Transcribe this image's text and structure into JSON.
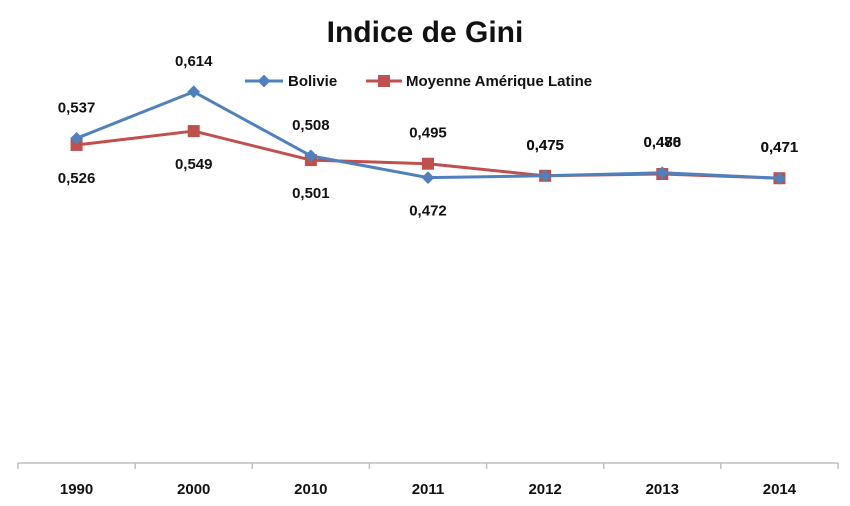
{
  "chart_data": {
    "type": "line",
    "title": "Indice de Gini",
    "xlabel": "",
    "ylabel": "",
    "categories": [
      "1990",
      "2000",
      "2010",
      "2011",
      "2012",
      "2013",
      "2014"
    ],
    "ylim": [
      0.0,
      0.65
    ],
    "grid": false,
    "legend": "top",
    "series": [
      {
        "name": "Bolivie",
        "color": "#4F81BD",
        "marker": "diamond",
        "values": [
          0.537,
          0.614,
          0.508,
          0.472,
          0.475,
          0.48,
          0.471
        ],
        "labels": [
          "0,537",
          "0,614",
          "0,508",
          "0,472",
          "0,475",
          "0,480",
          "0,471"
        ]
      },
      {
        "name": "Moyenne Amérique Latine",
        "color": "#C0504D",
        "marker": "square",
        "values": [
          0.526,
          0.549,
          0.501,
          0.495,
          0.475,
          0.478,
          0.471
        ],
        "labels": [
          "0,526",
          "0,549",
          "0,501",
          "0,495",
          "0,475",
          "0,478",
          "0,471"
        ]
      }
    ]
  }
}
